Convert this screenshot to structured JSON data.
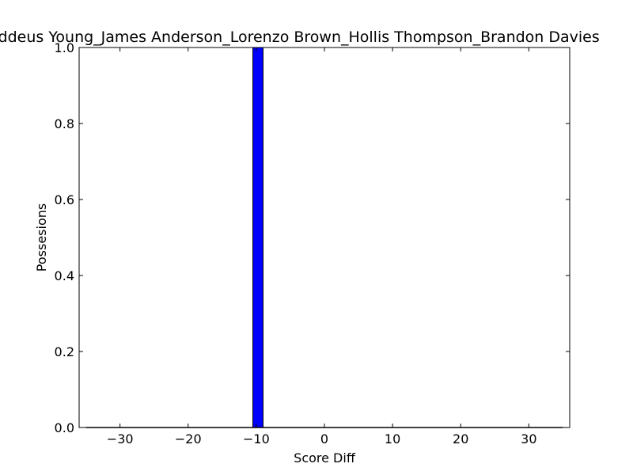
{
  "chart_data": {
    "type": "bar",
    "title": "Thaddeus Young_James Anderson_Lorenzo Brown_Hollis Thompson_Brandon Davies",
    "xlabel": "Score Diff",
    "ylabel": "Possesions",
    "xlim": [
      -36,
      36
    ],
    "ylim": [
      0,
      1.0
    ],
    "xticks": [
      -30,
      -20,
      -10,
      0,
      10,
      20,
      30
    ],
    "yticks": [
      0.0,
      0.2,
      0.4,
      0.6,
      0.8,
      1.0
    ],
    "xtick_labels": [
      "−30",
      "−20",
      "−10",
      "0",
      "10",
      "20",
      "30"
    ],
    "ytick_labels": [
      "0.0",
      "0.2",
      "0.4",
      "0.6",
      "0.8",
      "1.0"
    ],
    "bin_width": 1.5,
    "bars": [
      {
        "x": -9.75,
        "width": 1.5,
        "value": 1.0
      }
    ],
    "bar_color": "#0000ff",
    "edge_color": "#000000",
    "grid": false
  }
}
